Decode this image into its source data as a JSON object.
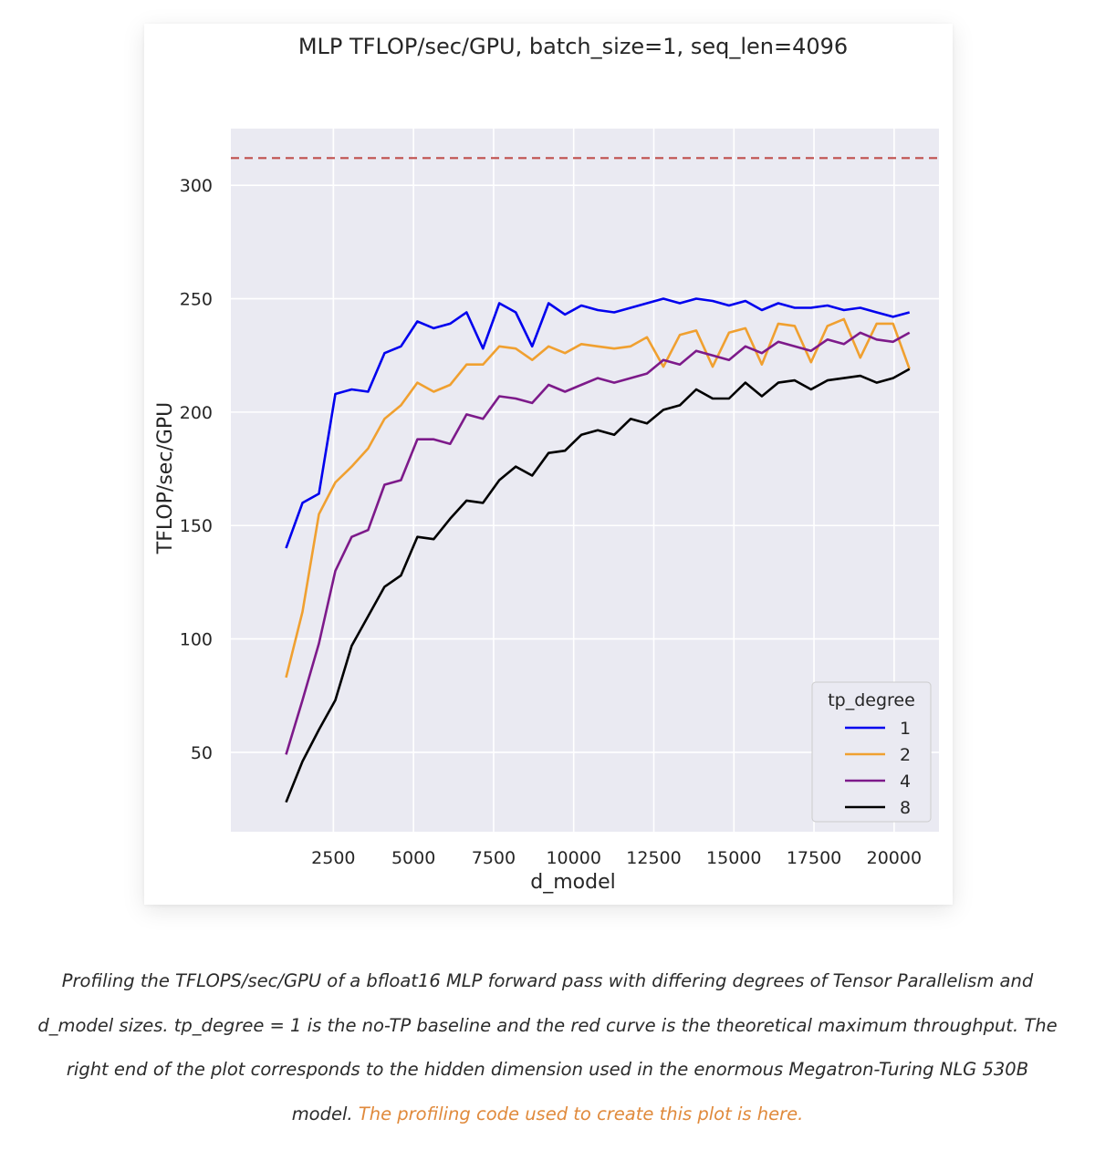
{
  "chart_data": {
    "type": "line",
    "title": "MLP TFLOP/sec/GPU, batch_size=1, seq_len=4096",
    "xlabel": "d_model",
    "ylabel": "TFLOP/sec/GPU",
    "xlim": [
      -700,
      21400
    ],
    "ylim": [
      15,
      325
    ],
    "xticks": [
      2500,
      5000,
      7500,
      10000,
      12500,
      15000,
      17500,
      20000
    ],
    "yticks": [
      50,
      100,
      150,
      200,
      250,
      300
    ],
    "grid": true,
    "legend": {
      "title": "tp_degree",
      "position": "lower-right"
    },
    "reference_line": {
      "y": 312,
      "color": "#c0504d",
      "style": "dashed"
    },
    "x": [
      1024,
      1536,
      2048,
      2560,
      3072,
      3584,
      4096,
      4608,
      5120,
      5632,
      6144,
      6656,
      7168,
      7680,
      8192,
      8704,
      9216,
      9728,
      10240,
      10752,
      11264,
      11776,
      12288,
      12800,
      13312,
      13824,
      14336,
      14848,
      15360,
      15872,
      16384,
      16896,
      17408,
      17920,
      18432,
      18944,
      19456,
      19968,
      20480
    ],
    "series": [
      {
        "name": "1",
        "color": "#0000ee",
        "values": [
          140,
          160,
          164,
          208,
          210,
          209,
          226,
          229,
          240,
          237,
          239,
          244,
          228,
          248,
          244,
          229,
          248,
          243,
          247,
          245,
          244,
          246,
          248,
          250,
          248,
          250,
          249,
          247,
          249,
          245,
          248,
          246,
          246,
          247,
          245,
          246,
          244,
          242,
          244
        ]
      },
      {
        "name": "2",
        "color": "#f0a030",
        "values": [
          83,
          112,
          155,
          169,
          176,
          184,
          197,
          203,
          213,
          209,
          212,
          221,
          221,
          229,
          228,
          223,
          229,
          226,
          230,
          229,
          228,
          229,
          233,
          220,
          234,
          236,
          220,
          235,
          237,
          221,
          239,
          238,
          222,
          238,
          241,
          224,
          239,
          239,
          219
        ]
      },
      {
        "name": "4",
        "color": "#7d1a8a",
        "values": [
          49,
          73,
          98,
          130,
          145,
          148,
          168,
          170,
          188,
          188,
          186,
          199,
          197,
          207,
          206,
          204,
          212,
          209,
          212,
          215,
          213,
          215,
          217,
          223,
          221,
          227,
          225,
          223,
          229,
          226,
          231,
          229,
          227,
          232,
          230,
          235,
          232,
          231,
          235
        ]
      },
      {
        "name": "8",
        "color": "#000000",
        "values": [
          28,
          46,
          60,
          73,
          97,
          110,
          123,
          128,
          145,
          144,
          153,
          161,
          160,
          170,
          176,
          172,
          182,
          183,
          190,
          192,
          190,
          197,
          195,
          201,
          203,
          210,
          206,
          206,
          213,
          207,
          213,
          214,
          210,
          214,
          215,
          216,
          213,
          215,
          219
        ]
      }
    ]
  },
  "caption": {
    "text": "Profiling the TFLOPS/sec/GPU of a bfloat16 MLP forward pass with differing degrees of Tensor Parallelism and d_model sizes. tp_degree = 1 is the no-TP baseline and the red curve is the theoretical maximum throughput. The right end of the plot corresponds to the hidden dimension used in the enormous Megatron-Turing NLG 530B model. ",
    "link_text": "The profiling code used to create this plot is here."
  }
}
